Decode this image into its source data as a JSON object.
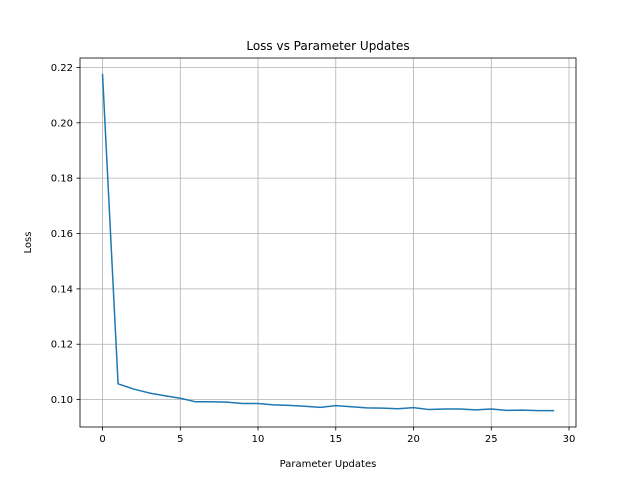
{
  "chart_data": {
    "type": "line",
    "title": "Loss vs Parameter Updates",
    "xlabel": "Parameter Updates",
    "ylabel": "Loss",
    "xlim": [
      -1.45,
      30.45
    ],
    "ylim": [
      0.0901,
      0.2234
    ],
    "xticks": [
      0,
      5,
      10,
      15,
      20,
      25,
      30
    ],
    "xtick_labels": [
      "0",
      "5",
      "10",
      "15",
      "20",
      "25",
      "30"
    ],
    "yticks": [
      0.1,
      0.12,
      0.14,
      0.16,
      0.18,
      0.2,
      0.22
    ],
    "ytick_labels": [
      "0.10",
      "0.12",
      "0.14",
      "0.16",
      "0.18",
      "0.20",
      "0.22"
    ],
    "grid": true,
    "series": [
      {
        "color": "#1f77b4",
        "x": [
          0,
          1,
          2,
          3,
          4,
          5,
          6,
          7,
          8,
          9,
          10,
          11,
          12,
          13,
          14,
          15,
          16,
          17,
          18,
          19,
          20,
          21,
          22,
          23,
          24,
          25,
          26,
          27,
          28,
          29
        ],
        "values": [
          0.2174,
          0.1057,
          0.1038,
          0.1024,
          0.1014,
          0.1005,
          0.0992,
          0.0992,
          0.0991,
          0.0986,
          0.0986,
          0.0981,
          0.0979,
          0.0976,
          0.0972,
          0.0978,
          0.0974,
          0.097,
          0.0969,
          0.0967,
          0.0971,
          0.0964,
          0.0966,
          0.0966,
          0.0963,
          0.0966,
          0.0961,
          0.0962,
          0.096,
          0.096
        ]
      }
    ]
  }
}
